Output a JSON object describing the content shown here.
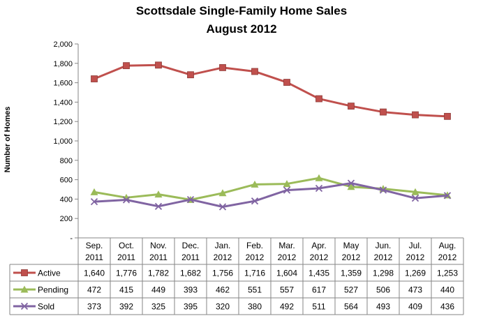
{
  "chart_data": {
    "type": "line",
    "title": "Scottsdale Single-Family Home Sales",
    "subtitle": "August 2012",
    "xlabel": "",
    "ylabel": "Number of Homes",
    "ylim": [
      0,
      2000
    ],
    "yticks": [
      "-",
      "200",
      "400",
      "600",
      "800",
      "1,000",
      "1,200",
      "1,400",
      "1,600",
      "1,800",
      "2,000"
    ],
    "grid": false,
    "legend": "data-table",
    "categories": [
      [
        "Sep.",
        "2011"
      ],
      [
        "Oct.",
        "2011"
      ],
      [
        "Nov.",
        "2011"
      ],
      [
        "Dec.",
        "2011"
      ],
      [
        "Jan.",
        "2012"
      ],
      [
        "Feb.",
        "2012"
      ],
      [
        "Mar.",
        "2012"
      ],
      [
        "Apr.",
        "2012"
      ],
      [
        "May",
        "2012"
      ],
      [
        "Jun.",
        "2012"
      ],
      [
        "Jul.",
        "2012"
      ],
      [
        "Aug.",
        "2012"
      ]
    ],
    "series": [
      {
        "name": "Active",
        "color": "#C0504D",
        "marker": "square",
        "values": [
          1640,
          1776,
          1782,
          1682,
          1756,
          1716,
          1604,
          1435,
          1359,
          1298,
          1269,
          1253
        ],
        "labels": [
          "1,640",
          "1,776",
          "1,782",
          "1,682",
          "1,756",
          "1,716",
          "1,604",
          "1,435",
          "1,359",
          "1,298",
          "1,269",
          "1,253"
        ]
      },
      {
        "name": "Pending",
        "color": "#9BBB59",
        "marker": "triangle",
        "values": [
          472,
          415,
          449,
          393,
          462,
          551,
          557,
          617,
          527,
          506,
          473,
          440
        ],
        "labels": [
          "472",
          "415",
          "449",
          "393",
          "462",
          "551",
          "557",
          "617",
          "527",
          "506",
          "473",
          "440"
        ]
      },
      {
        "name": "Sold",
        "color": "#8064A2",
        "marker": "x",
        "values": [
          373,
          392,
          325,
          395,
          320,
          380,
          492,
          511,
          564,
          493,
          409,
          436
        ],
        "labels": [
          "373",
          "392",
          "325",
          "395",
          "320",
          "380",
          "492",
          "511",
          "564",
          "493",
          "409",
          "436"
        ]
      }
    ]
  }
}
